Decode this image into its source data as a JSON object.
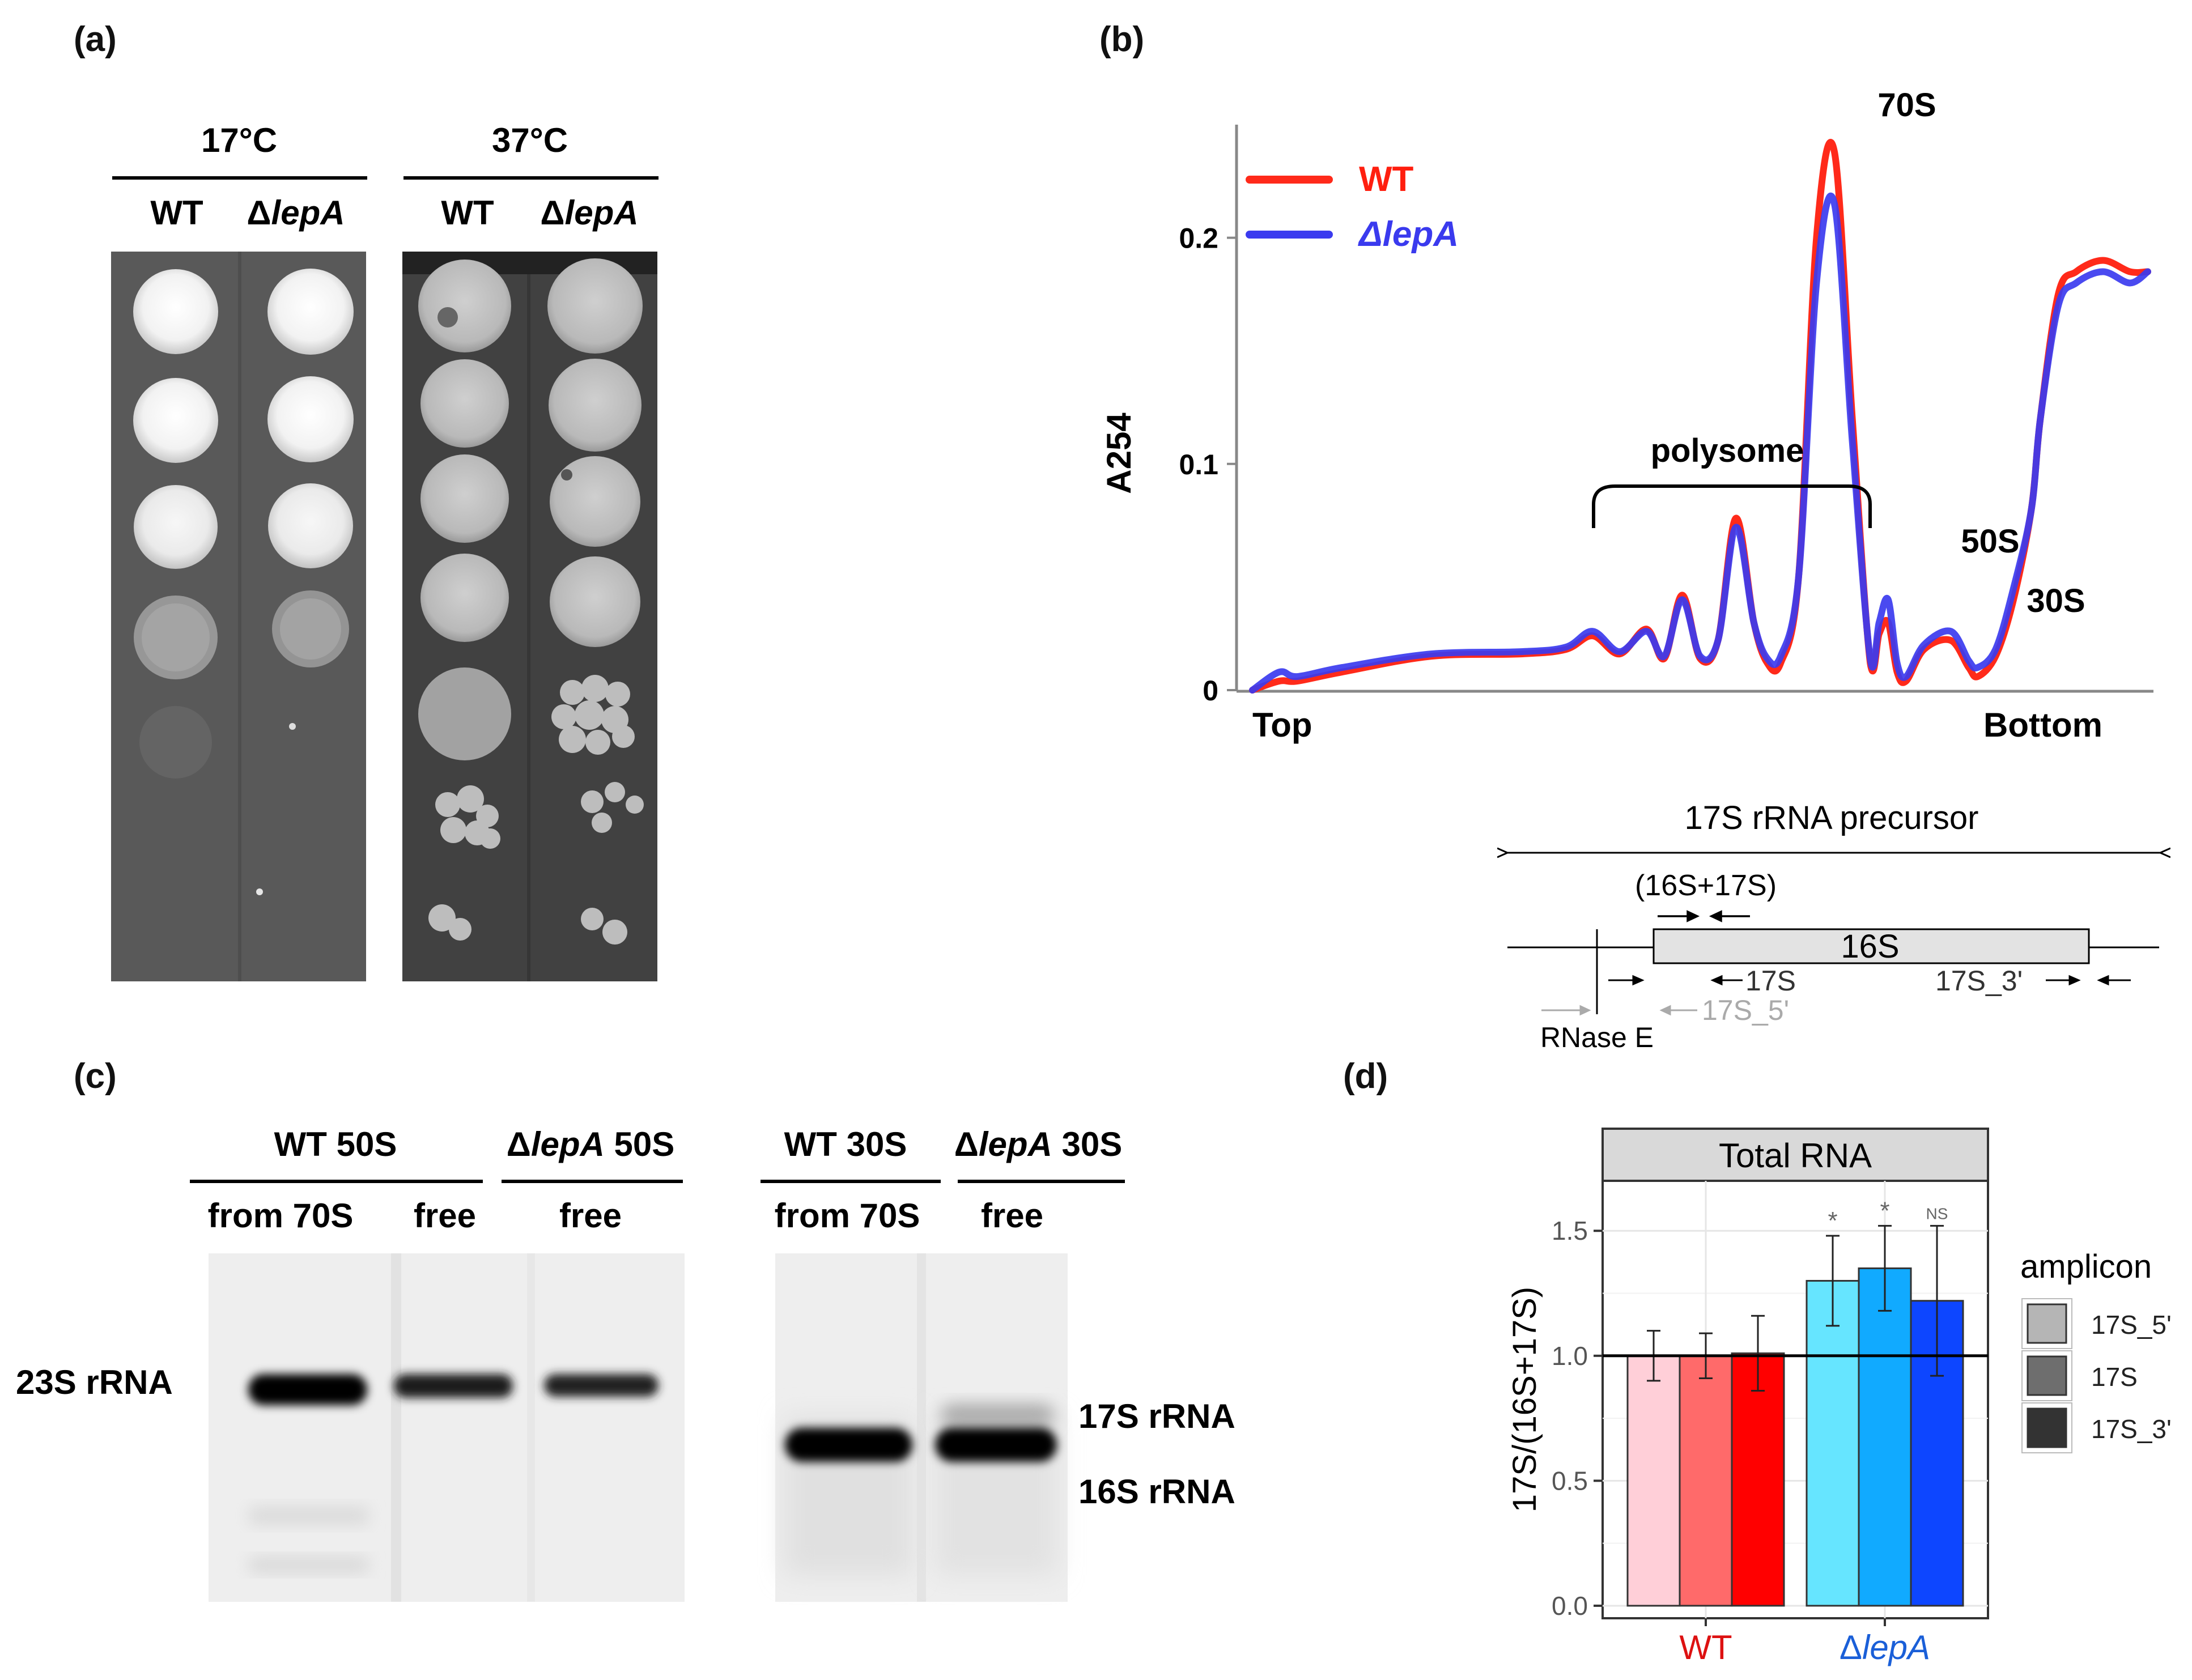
{
  "panel_a": {
    "label": "(a)",
    "group1": {
      "temp": "17°C",
      "lanes": [
        {
          "text": "WT",
          "italic": false
        },
        {
          "pre": "Δ",
          "it": "lepA"
        }
      ]
    },
    "group2": {
      "temp": "37°C",
      "lanes": [
        {
          "text": "WT",
          "italic": false
        },
        {
          "pre": "Δ",
          "it": "lepA"
        }
      ]
    }
  },
  "panel_b": {
    "label": "(b)",
    "chart_data": {
      "type": "line",
      "ylabel": "A254",
      "yticks": [
        "0",
        "0.1",
        "0.2"
      ],
      "ylim": [
        0,
        0.25
      ],
      "xlabel_left": "Top",
      "xlabel_right": "Bottom",
      "legend_position": "top-left",
      "series": [
        {
          "name": "WT",
          "color": "#ff2a1a",
          "x": [
            0,
            3,
            5,
            10,
            20,
            30,
            35,
            38,
            41,
            44,
            46,
            48,
            50,
            52,
            54,
            56,
            57.5,
            59,
            61,
            63,
            65,
            67,
            69,
            70,
            71,
            72,
            73,
            75,
            78,
            80,
            81,
            83,
            85,
            87,
            88,
            90,
            92,
            95,
            98,
            100
          ],
          "y": [
            0,
            0.004,
            0.004,
            0.008,
            0.015,
            0.016,
            0.018,
            0.024,
            0.016,
            0.027,
            0.014,
            0.042,
            0.014,
            0.022,
            0.076,
            0.03,
            0.012,
            0.012,
            0.05,
            0.2,
            0.238,
            0.12,
            0.012,
            0.025,
            0.03,
            0.008,
            0.004,
            0.018,
            0.022,
            0.01,
            0.006,
            0.015,
            0.04,
            0.08,
            0.12,
            0.175,
            0.185,
            0.19,
            0.185,
            0.185
          ]
        },
        {
          "name": "ΔlepA",
          "color": "#3b3bef",
          "x": [
            0,
            3,
            5,
            10,
            20,
            30,
            35,
            38,
            41,
            44,
            46,
            48,
            50,
            52,
            54,
            56,
            57.5,
            59,
            61,
            63,
            65,
            67,
            69,
            70,
            71,
            72,
            73,
            75,
            78,
            80,
            81,
            83,
            85,
            87,
            88,
            90,
            92,
            95,
            98,
            100
          ],
          "y": [
            0,
            0.008,
            0.006,
            0.01,
            0.016,
            0.017,
            0.019,
            0.026,
            0.017,
            0.026,
            0.015,
            0.04,
            0.015,
            0.022,
            0.072,
            0.03,
            0.014,
            0.015,
            0.05,
            0.18,
            0.215,
            0.11,
            0.014,
            0.03,
            0.04,
            0.012,
            0.006,
            0.02,
            0.026,
            0.013,
            0.01,
            0.018,
            0.045,
            0.08,
            0.12,
            0.17,
            0.18,
            0.185,
            0.18,
            0.185
          ]
        }
      ],
      "annotations": [
        "70S",
        "50S",
        "30S",
        "polysome"
      ]
    }
  },
  "schematic": {
    "precursor": "17S rRNA precursor",
    "mature": "16S",
    "primer_pair": "(16S+17S)",
    "primer_17s": "17S",
    "primer_5p": "17S_5'",
    "primer_3p": "17S_3'",
    "rnase": "RNase E"
  },
  "panel_c": {
    "label": "(c)",
    "gel1": {
      "headers": [
        {
          "text": "WT 50S"
        },
        {
          "pre": "Δ",
          "it": "lepA",
          "post": " 50S"
        }
      ],
      "subheaders": [
        "from 70S",
        "free",
        "free"
      ],
      "band": "23S rRNA"
    },
    "gel2": {
      "headers": [
        {
          "text": "WT 30S"
        },
        {
          "pre": "Δ",
          "it": "lepA",
          "post": " 30S"
        }
      ],
      "subheaders": [
        "from 70S",
        "free"
      ],
      "bands": [
        "17S rRNA",
        "16S rRNA"
      ]
    }
  },
  "panel_d": {
    "label": "(d)",
    "chart_data": {
      "type": "bar",
      "facet_title": "Total RNA",
      "ylabel": "17S/(16S+17S)",
      "ylim": [
        0,
        1.7
      ],
      "yticks": [
        "0.0",
        "0.5",
        "1.0",
        "1.5"
      ],
      "reference_line": 1.0,
      "categories": [
        "WT",
        "ΔlepA"
      ],
      "category_colors": [
        "#dd1111",
        "#1a5fd8"
      ],
      "legend_title": "amplicon",
      "series": [
        {
          "name": "17S_5'",
          "values": [
            1.0,
            1.3
          ],
          "errors": [
            0.1,
            0.18
          ],
          "colors": [
            "#ffcfd8",
            "#66e5ff"
          ],
          "legend_color": "#b5b5b5"
        },
        {
          "name": "17S",
          "values": [
            1.0,
            1.35
          ],
          "errors": [
            0.09,
            0.17
          ],
          "colors": [
            "#ff6a6a",
            "#11aaff"
          ],
          "legend_color": "#6e6e6e"
        },
        {
          "name": "17S_3'",
          "values": [
            1.01,
            1.22
          ],
          "errors": [
            0.15,
            0.3
          ],
          "colors": [
            "#ff0000",
            "#0d46ff"
          ],
          "legend_color": "#333333"
        }
      ],
      "significance": [
        [
          "",
          ""
        ],
        [
          "",
          "*"
        ],
        [
          "",
          "*"
        ],
        [
          "",
          "NS"
        ]
      ],
      "sig_marks": [
        "*",
        "*",
        "NS"
      ]
    }
  }
}
